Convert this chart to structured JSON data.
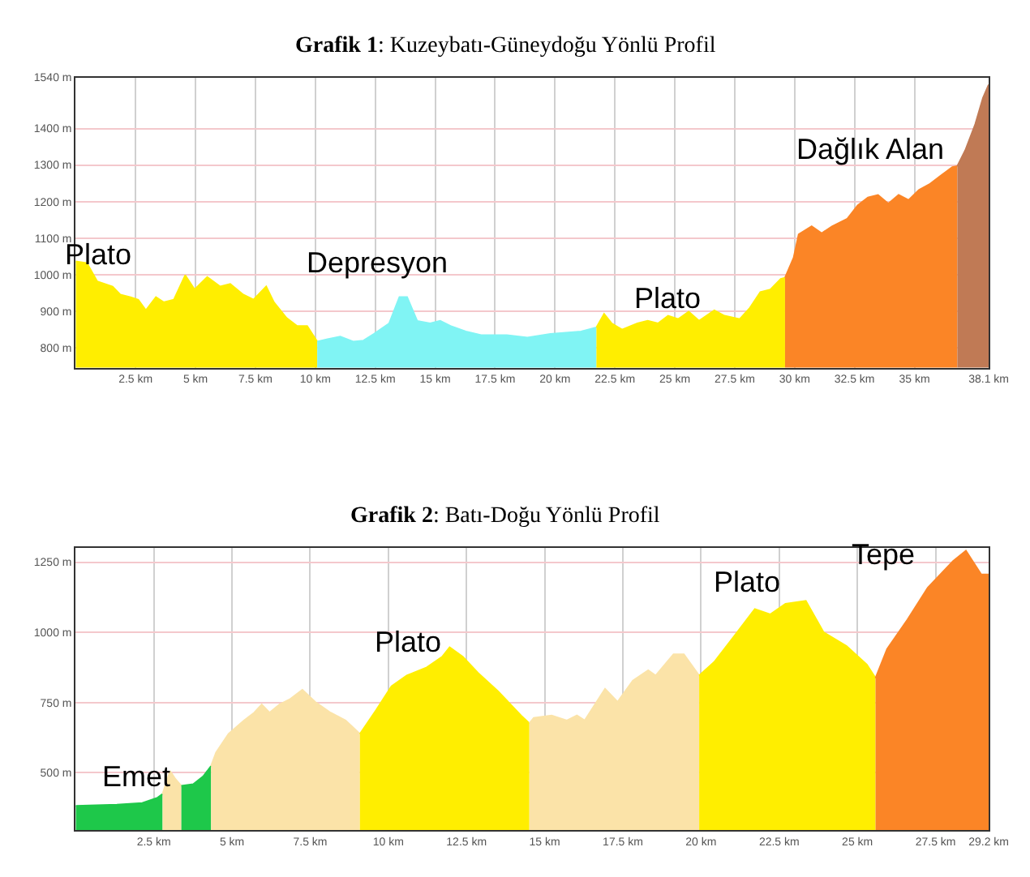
{
  "chart_data": [
    {
      "type": "area",
      "title": "Grafik 1: Kuzeybatı-Güneydoğu Yönlü Profil",
      "grid": true,
      "xlim": [
        0,
        38.1
      ],
      "ylim": [
        745,
        1540
      ],
      "xticks": [
        {
          "value": 2.5,
          "label": "2.5 km"
        },
        {
          "value": 5,
          "label": "5 km"
        },
        {
          "value": 7.5,
          "label": "7.5 km"
        },
        {
          "value": 10,
          "label": "10 km"
        },
        {
          "value": 12.5,
          "label": "12.5 km"
        },
        {
          "value": 15,
          "label": "15 km"
        },
        {
          "value": 17.5,
          "label": "17.5 km"
        },
        {
          "value": 20,
          "label": "20 km"
        },
        {
          "value": 22.5,
          "label": "22.5 km"
        },
        {
          "value": 25,
          "label": "25 km"
        },
        {
          "value": 27.5,
          "label": "27.5 km"
        },
        {
          "value": 30,
          "label": "30 km"
        },
        {
          "value": 32.5,
          "label": "32.5 km"
        },
        {
          "value": 35,
          "label": "35 km"
        },
        {
          "value": 38.1,
          "label": "38.1 km"
        }
      ],
      "yticks": [
        {
          "value": 800,
          "label": "800 m"
        },
        {
          "value": 900,
          "label": "900 m"
        },
        {
          "value": 1000,
          "label": "1000 m"
        },
        {
          "value": 1100,
          "label": "1100 m"
        },
        {
          "value": 1200,
          "label": "1200 m"
        },
        {
          "value": 1300,
          "label": "1300 m"
        },
        {
          "value": 1400,
          "label": "1400 m"
        },
        {
          "value": 1540,
          "label": "1540 m"
        }
      ],
      "series": [
        {
          "color": "#ffee00",
          "x": [
            0,
            0.47,
            0.9,
            1.54,
            1.86,
            2.29,
            2.61,
            2.93,
            3.35,
            3.67,
            4.1,
            4.57,
            4.96,
            5.49,
            6.03,
            6.45,
            6.99,
            7.42,
            7.95,
            8.27,
            8.8,
            9.23,
            9.66,
            10.08
          ],
          "values": [
            1036,
            1031,
            981,
            967,
            945,
            938,
            931,
            902,
            938,
            924,
            931,
            998,
            959,
            993,
            967,
            974,
            945,
            931,
            967,
            924,
            881,
            859,
            859,
            816
          ]
        },
        {
          "color": "#80f4f4",
          "x": [
            10.08,
            10.51,
            11.04,
            11.58,
            12.01,
            12.44,
            13.08,
            13.51,
            13.83,
            14.25,
            14.79,
            15.21,
            15.64,
            16.28,
            16.92,
            17.99,
            18.85,
            19.81,
            21.09,
            21.73
          ],
          "values": [
            816,
            823,
            830,
            816,
            819,
            837,
            866,
            938,
            938,
            873,
            866,
            873,
            859,
            844,
            834,
            834,
            827,
            837,
            844,
            855
          ]
        },
        {
          "color": "#ffee00",
          "x": [
            21.73,
            22.05,
            22.37,
            22.8,
            23.44,
            23.87,
            24.3,
            24.72,
            25.15,
            25.58,
            26.01,
            26.65,
            27.07,
            27.71,
            28.14,
            28.57,
            28.99,
            29.42,
            29.6
          ],
          "values": [
            855,
            892,
            866,
            849,
            866,
            873,
            866,
            887,
            878,
            898,
            873,
            902,
            887,
            878,
            909,
            952,
            959,
            988,
            991
          ]
        },
        {
          "color": "#fb8526",
          "x": [
            29.6,
            29.96,
            30.17,
            30.71,
            31.13,
            31.56,
            32.2,
            32.63,
            33.06,
            33.48,
            33.91,
            34.34,
            34.76,
            35.19,
            35.62,
            36.04,
            36.58,
            36.79
          ],
          "values": [
            991,
            1046,
            1110,
            1132,
            1113,
            1132,
            1153,
            1189,
            1211,
            1218,
            1194,
            1218,
            1204,
            1232,
            1247,
            1268,
            1294,
            1297
          ]
        },
        {
          "color": "#c07a55",
          "x": [
            36.79,
            37.12,
            37.54,
            37.86,
            38.1
          ],
          "values": [
            1297,
            1340,
            1412,
            1484,
            1520
          ]
        }
      ],
      "annotations": [
        "Plato",
        "Depresyon",
        "Plato",
        "Dağlık Alan"
      ]
    },
    {
      "type": "area",
      "title": "Grafik 2: Batı-Doğu Yönlü Profil",
      "grid": true,
      "xlim": [
        0,
        29.2
      ],
      "ylim": [
        295,
        1300
      ],
      "xticks": [
        {
          "value": 2.5,
          "label": "2.5 km"
        },
        {
          "value": 5,
          "label": "5 km"
        },
        {
          "value": 7.5,
          "label": "7.5 km"
        },
        {
          "value": 10,
          "label": "10 km"
        },
        {
          "value": 12.5,
          "label": "12.5 km"
        },
        {
          "value": 15,
          "label": "15 km"
        },
        {
          "value": 17.5,
          "label": "17.5 km"
        },
        {
          "value": 20,
          "label": "20 km"
        },
        {
          "value": 22.5,
          "label": "22.5 km"
        },
        {
          "value": 25,
          "label": "25 km"
        },
        {
          "value": 27.5,
          "label": "27.5 km"
        },
        {
          "value": 29.2,
          "label": "29.2 km"
        }
      ],
      "yticks": [
        {
          "value": 500,
          "label": "500 m"
        },
        {
          "value": 750,
          "label": "750 m"
        },
        {
          "value": 1000,
          "label": "1000 m"
        },
        {
          "value": 1250,
          "label": "1250 m"
        }
      ],
      "series": [
        {
          "color": "#1ec84a",
          "x": [
            0,
            1.32,
            2.13,
            2.62,
            2.78
          ],
          "values": [
            382,
            386,
            392,
            411,
            424
          ]
        },
        {
          "color": "#fbe3a8",
          "x": [
            2.78,
            3.02,
            3.19,
            3.38
          ],
          "values": [
            424,
            506,
            477,
            453
          ]
        },
        {
          "color": "#1ec84a",
          "x": [
            3.38,
            3.76,
            4.08,
            4.33
          ],
          "values": [
            453,
            459,
            487,
            524
          ]
        },
        {
          "color": "#fbe3a8",
          "x": [
            4.33,
            4.49,
            4.89,
            5.38,
            5.71,
            5.95,
            6.2,
            6.52,
            6.84,
            7.25,
            7.66,
            8.15,
            8.63,
            9.09
          ],
          "values": [
            524,
            572,
            638,
            686,
            714,
            743,
            714,
            743,
            761,
            795,
            752,
            714,
            686,
            638
          ]
        },
        {
          "color": "#ffee00",
          "x": [
            9.09,
            9.61,
            10.1,
            10.59,
            11.23,
            11.72,
            11.96,
            12.38,
            12.86,
            13.51,
            14.24,
            14.51
          ],
          "values": [
            638,
            723,
            808,
            846,
            875,
            913,
            947,
            913,
            856,
            790,
            704,
            676
          ]
        },
        {
          "color": "#fbe3a8",
          "x": [
            14.51,
            14.65,
            15.22,
            15.71,
            16.03,
            16.28,
            16.93,
            17.33,
            17.82,
            18.31,
            18.55,
            19.12,
            19.45,
            19.94
          ],
          "values": [
            676,
            695,
            704,
            686,
            704,
            686,
            799,
            752,
            828,
            865,
            846,
            922,
            922,
            846
          ]
        },
        {
          "color": "#ffee00",
          "x": [
            19.94,
            20.42,
            21.07,
            21.72,
            22.21,
            22.7,
            23.35,
            23.92,
            24.65,
            25.3,
            25.58
          ],
          "values": [
            846,
            894,
            988,
            1083,
            1064,
            1102,
            1112,
            1000,
            951,
            885,
            837
          ]
        },
        {
          "color": "#fb8526",
          "x": [
            25.58,
            25.95,
            26.6,
            27.25,
            28.06,
            28.47,
            28.96,
            29.2
          ],
          "values": [
            837,
            941,
            1045,
            1159,
            1254,
            1291,
            1206,
            1206
          ]
        }
      ],
      "annotations": [
        "Emet",
        "Plato",
        "Plato",
        "Tepe"
      ]
    }
  ]
}
